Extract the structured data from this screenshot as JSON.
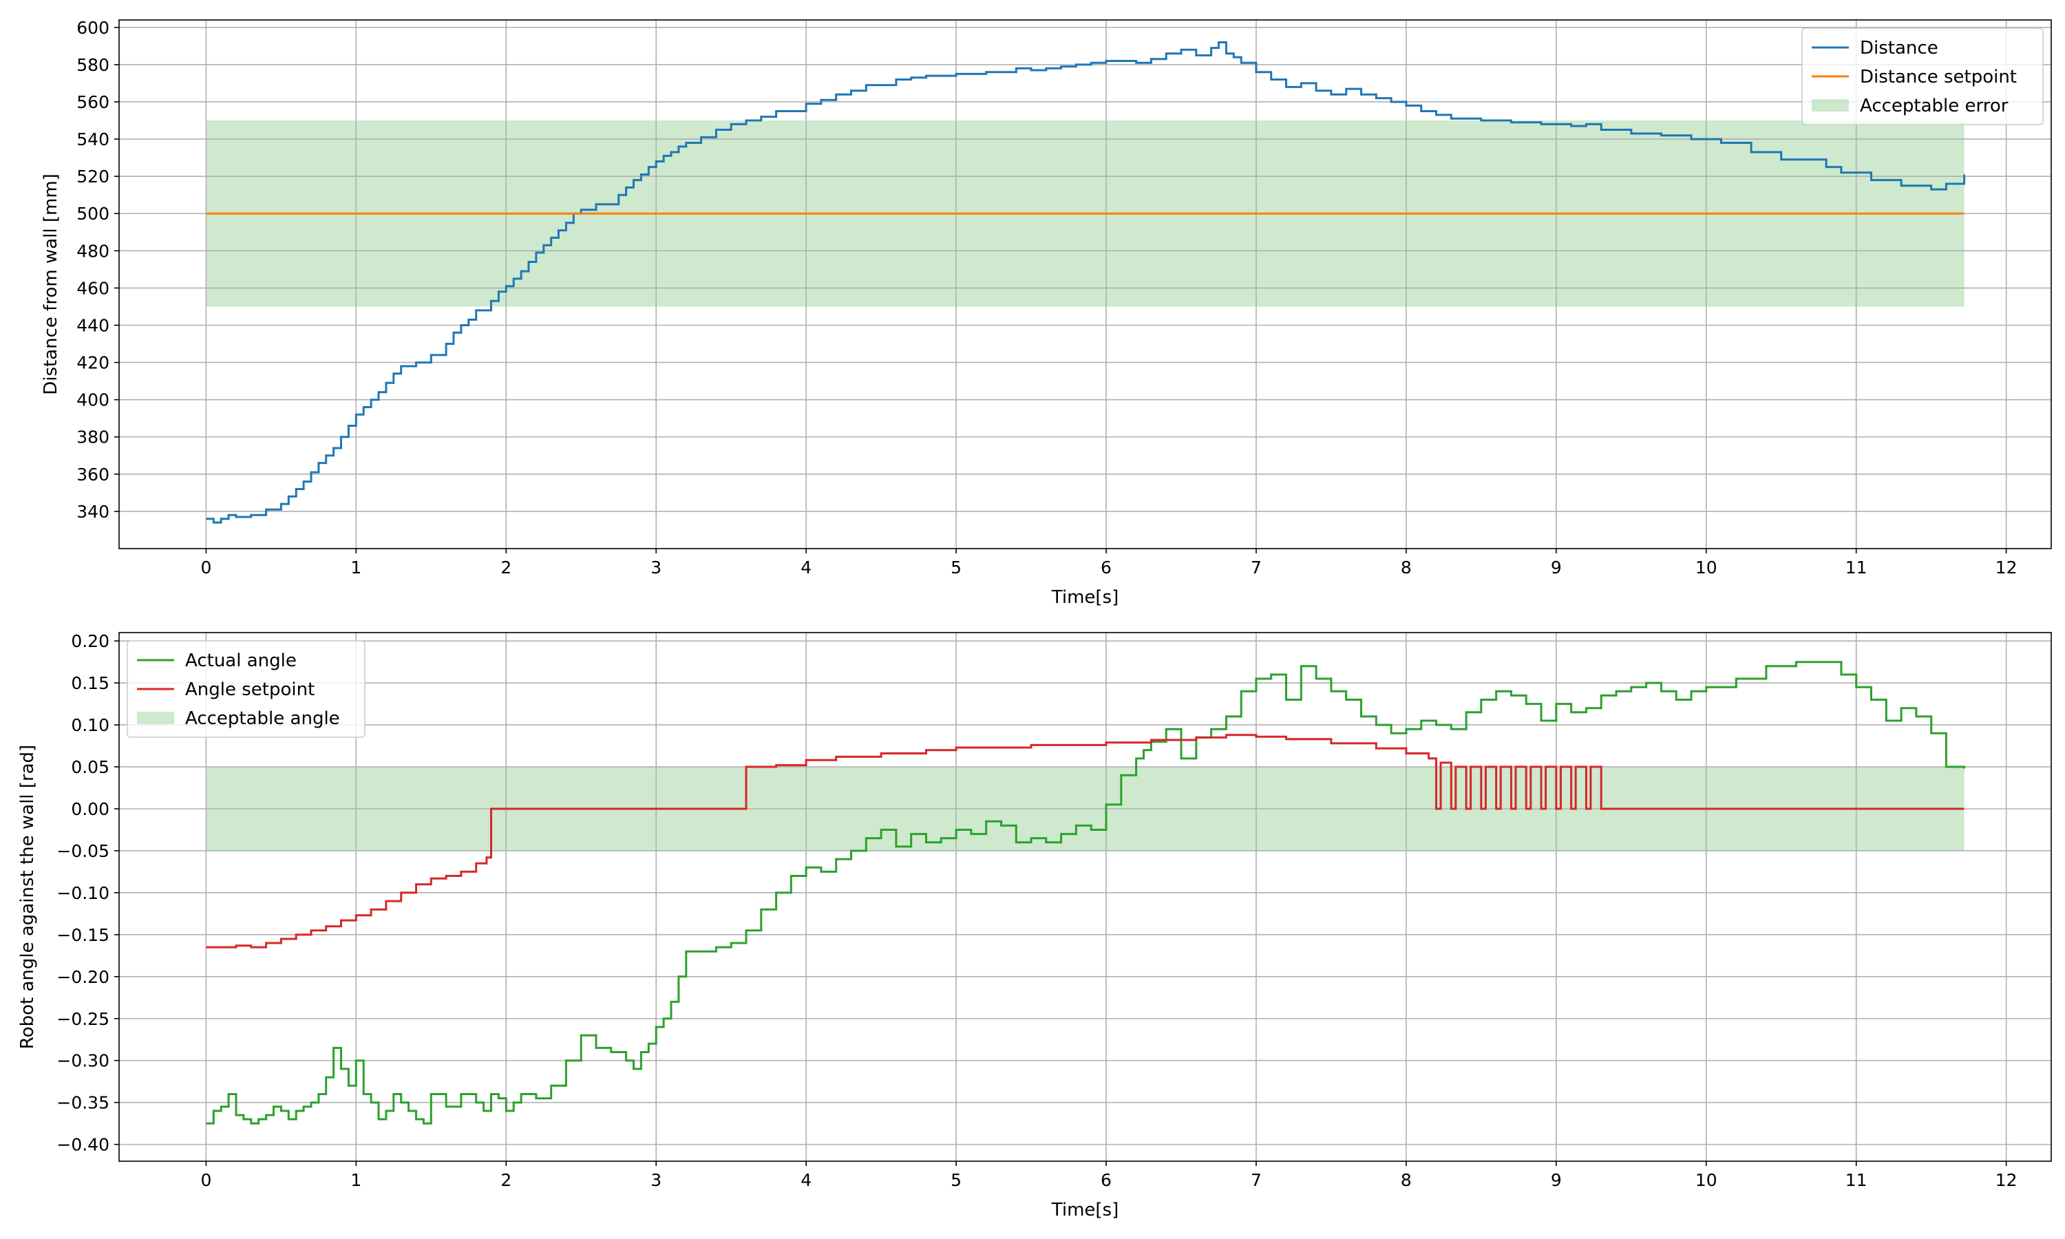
{
  "colors": {
    "distance": "#1f77b4",
    "distance_setpoint": "#ff7f0e",
    "acceptable_band": "#2ca02c",
    "actual_angle": "#2ca02c",
    "angle_setpoint": "#d62728",
    "grid": "#b0b0b0"
  },
  "chart_data": [
    {
      "type": "line",
      "title": "",
      "xlabel": "Time[s]",
      "ylabel": "Distance from wall [mm]",
      "xlim": [
        -0.58,
        12.3
      ],
      "ylim": [
        320,
        604
      ],
      "xticks": [
        0,
        1,
        2,
        3,
        4,
        5,
        6,
        7,
        8,
        9,
        10,
        11,
        12
      ],
      "yticks": [
        340,
        360,
        380,
        400,
        420,
        440,
        460,
        480,
        500,
        520,
        540,
        560,
        580,
        600
      ],
      "grid": true,
      "legend_position": "top-right",
      "bands": [
        {
          "name": "Acceptable error",
          "x": [
            0,
            11.72
          ],
          "y": [
            450,
            550
          ]
        }
      ],
      "series": [
        {
          "name": "Distance",
          "step": true,
          "x": [
            0,
            0.05,
            0.1,
            0.15,
            0.2,
            0.3,
            0.4,
            0.5,
            0.55,
            0.6,
            0.65,
            0.7,
            0.75,
            0.8,
            0.85,
            0.9,
            0.95,
            1.0,
            1.05,
            1.1,
            1.15,
            1.2,
            1.25,
            1.3,
            1.35,
            1.4,
            1.5,
            1.6,
            1.65,
            1.7,
            1.75,
            1.8,
            1.9,
            1.95,
            2.0,
            2.05,
            2.1,
            2.15,
            2.2,
            2.25,
            2.3,
            2.35,
            2.4,
            2.45,
            2.5,
            2.6,
            2.75,
            2.8,
            2.85,
            2.9,
            2.95,
            3.0,
            3.05,
            3.1,
            3.15,
            3.2,
            3.3,
            3.4,
            3.5,
            3.6,
            3.7,
            3.8,
            4.0,
            4.1,
            4.2,
            4.3,
            4.4,
            4.6,
            4.7,
            4.8,
            5.0,
            5.2,
            5.4,
            5.5,
            5.6,
            5.7,
            5.8,
            5.9,
            6.0,
            6.2,
            6.3,
            6.4,
            6.5,
            6.6,
            6.7,
            6.75,
            6.8,
            6.85,
            6.9,
            7.0,
            7.1,
            7.2,
            7.3,
            7.4,
            7.5,
            7.6,
            7.7,
            7.8,
            7.9,
            8.0,
            8.1,
            8.2,
            8.3,
            8.5,
            8.7,
            8.9,
            9.0,
            9.1,
            9.2,
            9.3,
            9.5,
            9.7,
            9.9,
            10.1,
            10.3,
            10.5,
            10.8,
            10.9,
            11.1,
            11.3,
            11.5,
            11.6,
            11.72
          ],
          "values": [
            336,
            334,
            336,
            338,
            337,
            338,
            341,
            344,
            348,
            352,
            356,
            361,
            366,
            370,
            374,
            380,
            386,
            392,
            396,
            400,
            404,
            409,
            414,
            418,
            418,
            420,
            424,
            430,
            436,
            440,
            443,
            448,
            453,
            458,
            461,
            465,
            469,
            474,
            479,
            483,
            487,
            491,
            495,
            500,
            502,
            505,
            510,
            514,
            518,
            521,
            525,
            528,
            531,
            533,
            536,
            538,
            541,
            545,
            548,
            550,
            552,
            555,
            559,
            561,
            564,
            566,
            569,
            572,
            573,
            574,
            575,
            576,
            578,
            577,
            578,
            579,
            580,
            581,
            582,
            581,
            583,
            586,
            588,
            585,
            589,
            592,
            586,
            584,
            581,
            576,
            572,
            568,
            570,
            566,
            564,
            567,
            564,
            562,
            560,
            558,
            555,
            553,
            551,
            550,
            549,
            548,
            548,
            547,
            548,
            545,
            543,
            542,
            540,
            538,
            533,
            529,
            525,
            522,
            518,
            515,
            513,
            516,
            521
          ]
        },
        {
          "name": "Distance setpoint",
          "step": false,
          "x": [
            0,
            11.72
          ],
          "values": [
            500,
            500
          ]
        }
      ]
    },
    {
      "type": "line",
      "title": "",
      "xlabel": "Time[s]",
      "ylabel": "Robot angle against the wall [rad]",
      "xlim": [
        -0.58,
        12.3
      ],
      "ylim": [
        -0.42,
        0.21
      ],
      "xticks": [
        0,
        1,
        2,
        3,
        4,
        5,
        6,
        7,
        8,
        9,
        10,
        11,
        12
      ],
      "yticks": [
        -0.4,
        -0.35,
        -0.3,
        -0.25,
        -0.2,
        -0.15,
        -0.1,
        -0.05,
        0.0,
        0.05,
        0.1,
        0.15,
        0.2
      ],
      "ytick_labels": [
        "−0.40",
        "−0.35",
        "−0.30",
        "−0.25",
        "−0.20",
        "−0.15",
        "−0.10",
        "−0.05",
        "0.00",
        "0.05",
        "0.10",
        "0.15",
        "0.20"
      ],
      "grid": true,
      "legend_position": "top-left",
      "bands": [
        {
          "name": "Acceptable angle",
          "x": [
            0,
            11.72
          ],
          "y": [
            -0.05,
            0.05
          ]
        }
      ],
      "series": [
        {
          "name": "Actual angle",
          "step": true,
          "x": [
            0,
            0.05,
            0.1,
            0.15,
            0.2,
            0.25,
            0.3,
            0.35,
            0.4,
            0.45,
            0.5,
            0.55,
            0.6,
            0.65,
            0.7,
            0.75,
            0.8,
            0.85,
            0.9,
            0.95,
            1.0,
            1.05,
            1.1,
            1.15,
            1.2,
            1.25,
            1.3,
            1.35,
            1.4,
            1.45,
            1.5,
            1.6,
            1.7,
            1.8,
            1.85,
            1.9,
            1.95,
            2.0,
            2.05,
            2.1,
            2.2,
            2.3,
            2.4,
            2.5,
            2.6,
            2.7,
            2.8,
            2.85,
            2.9,
            2.95,
            3.0,
            3.05,
            3.1,
            3.15,
            3.2,
            3.3,
            3.4,
            3.5,
            3.6,
            3.7,
            3.8,
            3.9,
            4.0,
            4.1,
            4.2,
            4.3,
            4.4,
            4.5,
            4.6,
            4.7,
            4.8,
            4.9,
            5.0,
            5.1,
            5.2,
            5.3,
            5.4,
            5.5,
            5.6,
            5.7,
            5.8,
            5.9,
            6.0,
            6.1,
            6.2,
            6.25,
            6.3,
            6.4,
            6.5,
            6.6,
            6.7,
            6.8,
            6.9,
            7.0,
            7.1,
            7.2,
            7.3,
            7.4,
            7.5,
            7.6,
            7.7,
            7.8,
            7.9,
            8.0,
            8.1,
            8.2,
            8.3,
            8.4,
            8.5,
            8.6,
            8.7,
            8.8,
            8.9,
            9.0,
            9.1,
            9.2,
            9.3,
            9.4,
            9.5,
            9.6,
            9.7,
            9.8,
            9.9,
            10.0,
            10.2,
            10.4,
            10.6,
            10.9,
            11.0,
            11.1,
            11.2,
            11.3,
            11.4,
            11.5,
            11.6,
            11.72
          ],
          "values": [
            -0.375,
            -0.36,
            -0.355,
            -0.34,
            -0.365,
            -0.37,
            -0.375,
            -0.37,
            -0.365,
            -0.355,
            -0.36,
            -0.37,
            -0.36,
            -0.355,
            -0.35,
            -0.34,
            -0.32,
            -0.285,
            -0.31,
            -0.33,
            -0.3,
            -0.34,
            -0.35,
            -0.37,
            -0.36,
            -0.34,
            -0.35,
            -0.36,
            -0.37,
            -0.375,
            -0.34,
            -0.355,
            -0.34,
            -0.35,
            -0.36,
            -0.34,
            -0.345,
            -0.36,
            -0.35,
            -0.34,
            -0.345,
            -0.33,
            -0.3,
            -0.27,
            -0.285,
            -0.29,
            -0.3,
            -0.31,
            -0.29,
            -0.28,
            -0.26,
            -0.25,
            -0.23,
            -0.2,
            -0.17,
            -0.17,
            -0.165,
            -0.16,
            -0.145,
            -0.12,
            -0.1,
            -0.08,
            -0.07,
            -0.075,
            -0.06,
            -0.05,
            -0.035,
            -0.025,
            -0.045,
            -0.03,
            -0.04,
            -0.035,
            -0.025,
            -0.03,
            -0.015,
            -0.02,
            -0.04,
            -0.035,
            -0.04,
            -0.03,
            -0.02,
            -0.025,
            0.005,
            0.04,
            0.06,
            0.07,
            0.08,
            0.095,
            0.06,
            0.085,
            0.095,
            0.11,
            0.14,
            0.155,
            0.16,
            0.13,
            0.17,
            0.155,
            0.14,
            0.13,
            0.11,
            0.1,
            0.09,
            0.095,
            0.105,
            0.1,
            0.095,
            0.115,
            0.13,
            0.14,
            0.135,
            0.125,
            0.105,
            0.125,
            0.115,
            0.12,
            0.135,
            0.14,
            0.145,
            0.15,
            0.14,
            0.13,
            0.14,
            0.145,
            0.155,
            0.17,
            0.175,
            0.16,
            0.145,
            0.13,
            0.105,
            0.12,
            0.11,
            0.09,
            0.05,
            0.048
          ]
        },
        {
          "name": "Angle setpoint",
          "step": true,
          "x": [
            0,
            0.1,
            0.2,
            0.3,
            0.4,
            0.5,
            0.6,
            0.7,
            0.8,
            0.9,
            1.0,
            1.1,
            1.2,
            1.3,
            1.4,
            1.5,
            1.6,
            1.7,
            1.8,
            1.87,
            1.9,
            2.0,
            3.58,
            3.6,
            3.8,
            4.0,
            4.2,
            4.5,
            4.8,
            5.0,
            5.5,
            6.0,
            6.3,
            6.6,
            6.8,
            7.0,
            7.2,
            7.5,
            7.8,
            8.0,
            8.15,
            8.2,
            8.23,
            8.3,
            8.33,
            8.4,
            8.43,
            8.5,
            8.53,
            8.6,
            8.63,
            8.7,
            8.73,
            8.8,
            8.83,
            8.9,
            8.93,
            9.0,
            9.03,
            9.1,
            9.13,
            9.2,
            9.23,
            9.3,
            11.72
          ],
          "values": [
            -0.165,
            -0.165,
            -0.163,
            -0.165,
            -0.16,
            -0.155,
            -0.15,
            -0.145,
            -0.14,
            -0.133,
            -0.127,
            -0.12,
            -0.11,
            -0.1,
            -0.09,
            -0.083,
            -0.08,
            -0.075,
            -0.065,
            -0.058,
            0.0,
            0.0,
            0.0,
            0.05,
            0.052,
            0.058,
            0.062,
            0.066,
            0.07,
            0.073,
            0.076,
            0.079,
            0.082,
            0.085,
            0.088,
            0.086,
            0.083,
            0.078,
            0.072,
            0.066,
            0.06,
            0.0,
            0.055,
            0.0,
            0.05,
            0.0,
            0.05,
            0.0,
            0.05,
            0.0,
            0.05,
            0.0,
            0.05,
            0.0,
            0.05,
            0.0,
            0.05,
            0.0,
            0.05,
            0.0,
            0.05,
            0.0,
            0.05,
            0.0,
            0.0
          ]
        }
      ]
    }
  ]
}
